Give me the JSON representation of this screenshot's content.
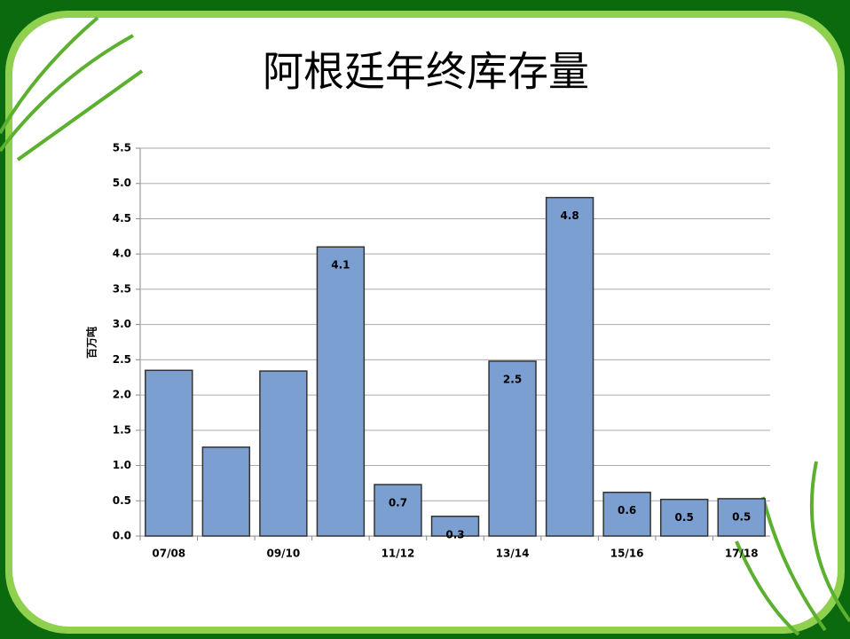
{
  "chart_data": {
    "type": "bar",
    "title": "阿根廷年终库存量",
    "y_label": "百万吨",
    "categories": [
      "07/08",
      null,
      "09/10",
      null,
      "11/12",
      null,
      "13/14",
      null,
      "15/16",
      null,
      "17/18"
    ],
    "values": [
      2.35,
      1.26,
      2.34,
      4.1,
      0.73,
      0.28,
      2.48,
      4.8,
      0.62,
      0.52,
      0.53
    ],
    "value_labels": [
      null,
      null,
      null,
      "4.1",
      "0.7",
      "0.3",
      "2.5",
      "4.8",
      "0.6",
      "0.5",
      "0.5"
    ],
    "color": "#7b9fd0",
    "ylim": [
      0,
      5.5
    ],
    "yticks": [
      {
        "value": 0,
        "label": "0.0"
      },
      0.5,
      {
        "value": 1,
        "label": "1.0"
      },
      1.5,
      {
        "value": 2,
        "label": "2.0"
      },
      2.5,
      {
        "value": 3,
        "label": "3.0"
      },
      3.5,
      {
        "value": 4,
        "label": "4.0"
      },
      4.5,
      {
        "value": 5,
        "label": "5.0"
      },
      5.5
    ],
    "grid": true
  }
}
